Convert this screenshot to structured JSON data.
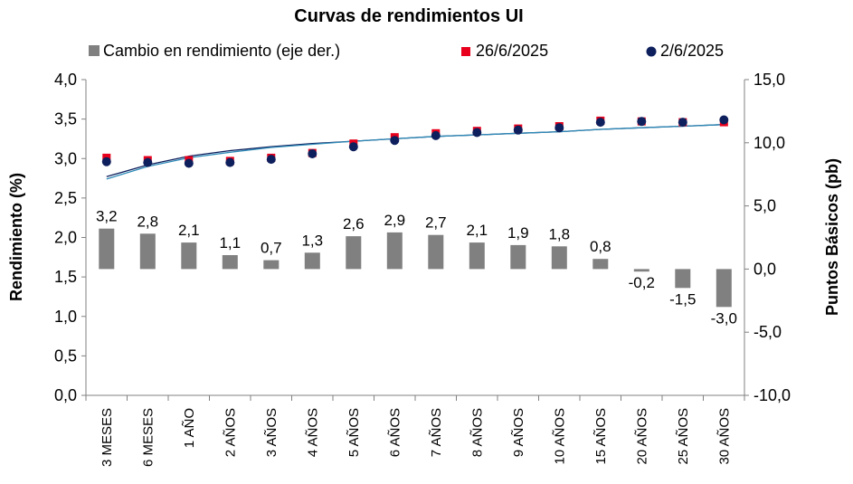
{
  "chart_data": {
    "type": "bar+scatter",
    "title": "Curvas de rendimientos UI",
    "categories": [
      "3 MESES",
      "6 MESES",
      "1 AÑO",
      "2 AÑOS",
      "3 AÑOS",
      "4 AÑOS",
      "5 AÑOS",
      "6 AÑOS",
      "7 AÑOS",
      "8 AÑOS",
      "9 AÑOS",
      "10 AÑOS",
      "15 AÑOS",
      "20 AÑOS",
      "25 AÑOS",
      "30 AÑOS"
    ],
    "series": [
      {
        "name": "Cambio en rendimiento (eje der.)",
        "type": "bar",
        "axis": "right",
        "color": "#808080",
        "values": [
          3.2,
          2.8,
          2.1,
          1.1,
          0.7,
          1.3,
          2.6,
          2.9,
          2.7,
          2.1,
          1.9,
          1.8,
          0.8,
          -0.2,
          -1.5,
          -3.0
        ],
        "labels": [
          "3,2",
          "2,8",
          "2,1",
          "1,1",
          "0,7",
          "1,3",
          "2,6",
          "2,9",
          "2,7",
          "2,1",
          "1,9",
          "1,8",
          "0,8",
          "-0,2",
          "-1,5",
          "-3,0"
        ]
      },
      {
        "name": "26/6/2025",
        "type": "scatter",
        "axis": "left",
        "marker": "square",
        "color": "#e8001c",
        "values": [
          3.01,
          2.98,
          2.98,
          2.97,
          3.01,
          3.07,
          3.19,
          3.27,
          3.32,
          3.35,
          3.38,
          3.41,
          3.48,
          3.47,
          3.46,
          3.46
        ]
      },
      {
        "name": "2/6/2025",
        "type": "scatter",
        "axis": "left",
        "marker": "circle",
        "color": "#0d1f5c",
        "values": [
          2.96,
          2.95,
          2.94,
          2.95,
          2.99,
          3.06,
          3.15,
          3.23,
          3.29,
          3.33,
          3.36,
          3.39,
          3.46,
          3.47,
          3.46,
          3.49
        ]
      }
    ],
    "fitted_curves": [
      {
        "color": "#0d1f5c",
        "values": [
          2.77,
          2.92,
          3.03,
          3.1,
          3.15,
          3.19,
          3.22,
          3.25,
          3.28,
          3.3,
          3.32,
          3.34,
          3.37,
          3.39,
          3.41,
          3.43
        ]
      },
      {
        "color": "#2e8bb8",
        "values": [
          2.74,
          2.9,
          3.01,
          3.08,
          3.14,
          3.18,
          3.22,
          3.25,
          3.28,
          3.3,
          3.32,
          3.34,
          3.37,
          3.39,
          3.41,
          3.43
        ]
      }
    ],
    "ylabel": "Rendimiento (%)",
    "y2label": "Puntos Básicos (pb)",
    "ylim": [
      0,
      4
    ],
    "y2lim": [
      -10,
      15
    ],
    "yticks": [
      "0,0",
      "0,5",
      "1,0",
      "1,5",
      "2,0",
      "2,5",
      "3,0",
      "3,5",
      "4,0"
    ],
    "y2ticks": [
      "-10,0",
      "-5,0",
      "0,0",
      "5,0",
      "10,0",
      "15,0"
    ],
    "legend": "top",
    "grid": false
  }
}
